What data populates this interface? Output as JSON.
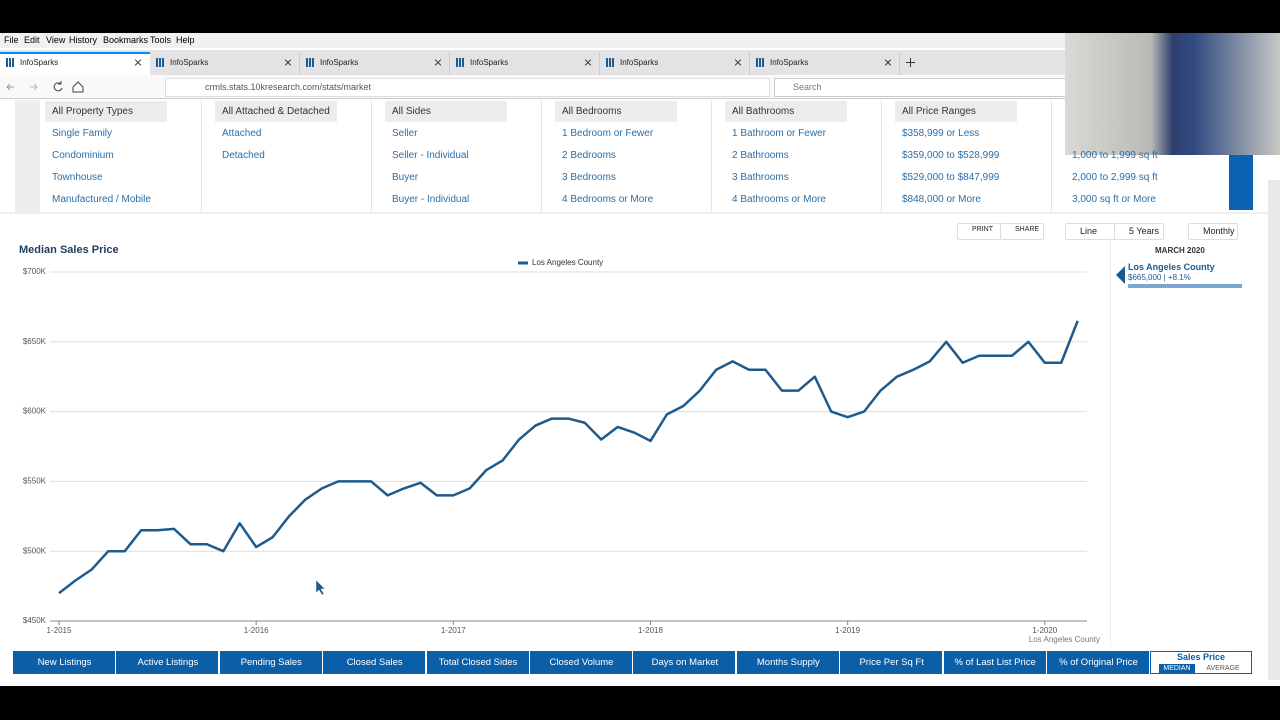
{
  "browser": {
    "menu": [
      "File",
      "Edit",
      "View",
      "History",
      "Bookmarks",
      "Tools",
      "Help"
    ],
    "tabs": [
      "InfoSparks",
      "InfoSparks",
      "InfoSparks",
      "InfoSparks",
      "InfoSparks",
      "InfoSparks"
    ],
    "url": "crmls.stats.10kresearch.com/stats/market",
    "search": "Search"
  },
  "filters": [
    {
      "header": "All Property Types",
      "items": [
        "Single Family",
        "Condominium",
        "Townhouse",
        "Manufactured / Mobile"
      ]
    },
    {
      "header": "All Attached & Detached",
      "items": [
        "Attached",
        "Detached"
      ]
    },
    {
      "header": "All Sides",
      "items": [
        "Seller",
        "Seller - Individual",
        "Buyer",
        "Buyer - Individual"
      ]
    },
    {
      "header": "All Bedrooms",
      "items": [
        "1 Bedroom or Fewer",
        "2 Bedrooms",
        "3 Bedrooms",
        "4 Bedrooms or More"
      ]
    },
    {
      "header": "All Bathrooms",
      "items": [
        "1 Bathroom or Fewer",
        "2 Bathrooms",
        "3 Bathrooms",
        "4 Bathrooms or More"
      ]
    },
    {
      "header": "All Price Ranges",
      "items": [
        "$358,999 or Less",
        "$359,000 to $528,999",
        "$529,000 to $847,999",
        "$848,000 or More"
      ]
    },
    {
      "items": [
        "1,000 to 1,999 sq ft",
        "2,000 to 2,999 sq ft",
        "3,000 sq ft or More"
      ]
    }
  ],
  "toolbar": {
    "print": "PRINT",
    "share": "SHARE",
    "chart_type": "Line",
    "range": "5 Years",
    "interval": "Monthly"
  },
  "chart_data": {
    "type": "line",
    "title": "Median Sales Price",
    "categories": [
      "1-2015",
      null,
      null,
      null,
      null,
      null,
      null,
      null,
      null,
      null,
      null,
      null,
      "1-2016",
      null,
      null,
      null,
      null,
      null,
      null,
      null,
      null,
      null,
      null,
      null,
      "1-2017",
      null,
      null,
      null,
      null,
      null,
      null,
      null,
      null,
      null,
      null,
      null,
      "1-2018",
      null,
      null,
      null,
      null,
      null,
      null,
      null,
      null,
      null,
      null,
      null,
      "1-2019",
      null,
      null,
      null,
      null,
      null,
      null,
      null,
      null,
      null,
      null,
      null,
      "1-2020",
      null,
      null
    ],
    "series": [
      {
        "name": "Los Angeles County",
        "color": "#1d5b8e",
        "values": [
          470000,
          479000,
          487000,
          500000,
          500000,
          515000,
          515000,
          516000,
          505000,
          505000,
          500000,
          520000,
          503000,
          510000,
          525000,
          537000,
          545000,
          550000,
          550000,
          550000,
          540000,
          545000,
          549000,
          540000,
          540000,
          545000,
          558000,
          565000,
          580000,
          590000,
          595000,
          595000,
          592000,
          580000,
          589000,
          585000,
          579000,
          598000,
          604000,
          615000,
          630000,
          636000,
          630000,
          630000,
          615000,
          615000,
          625000,
          600000,
          596000,
          600000,
          615000,
          625000,
          630000,
          636000,
          650000,
          635000,
          640000,
          640000,
          640000,
          650000,
          635000,
          635000,
          665000
        ]
      }
    ],
    "ylim": [
      450000,
      700000
    ],
    "yticks": [
      {
        "value": 450000,
        "label": "$450K"
      },
      {
        "value": 500000,
        "label": "$500K"
      },
      {
        "value": 550000,
        "label": "$550K"
      },
      {
        "value": 600000,
        "label": "$600K"
      },
      {
        "value": 650000,
        "label": "$650K"
      },
      {
        "value": 700000,
        "label": "$700K"
      }
    ],
    "grid": true,
    "xlabel": "Los Angeles County"
  },
  "detail": {
    "date": "MARCH 2020",
    "name": "Los Angeles County",
    "summary": "$665,000 | +8.1%"
  },
  "metric_tabs": [
    "New Listings",
    "Active Listings",
    "Pending Sales",
    "Closed Sales",
    "Total Closed Sides",
    "Closed Volume",
    "Days on Market",
    "Months Supply",
    "Price Per Sq Ft",
    "% of Last List Price",
    "% of Original Price"
  ],
  "active_tab": {
    "label": "Sales Price",
    "options": [
      "MEDIAN",
      "AVERAGE"
    ]
  }
}
